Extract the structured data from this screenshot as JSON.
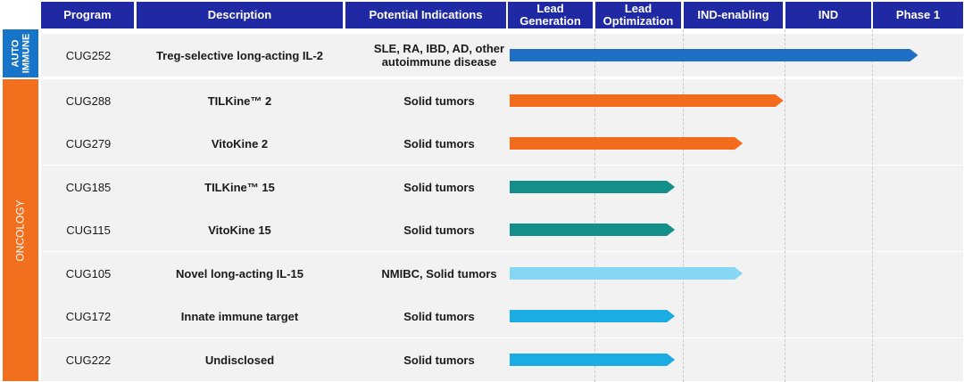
{
  "columns": {
    "program": "Program",
    "description": "Description",
    "indications": "Potential Indications",
    "stages": [
      "Lead\nGeneration",
      "Lead\nOptimization",
      "IND-enabling",
      "IND",
      "Phase 1"
    ]
  },
  "categories": {
    "autoimmune": "AUTO\nIMMUNE",
    "oncology": "ONCOLOGY"
  },
  "rows": [
    {
      "program": "CUG252",
      "description": "Treg-selective long-acting IL-2",
      "indication": "SLE, RA, IBD, AD, other\nautoimmune disease",
      "progress_stage": 4.5,
      "color": "#1F6FC4"
    },
    {
      "program": "CUG288",
      "description": "TILKine™ 2",
      "indication": "Solid tumors",
      "progress_stage": 2.98,
      "color": "#F36B1C"
    },
    {
      "program": "CUG279",
      "description": "VitoKine 2",
      "indication": "Solid tumors",
      "progress_stage": 2.58,
      "color": "#F36B1C"
    },
    {
      "program": "CUG185",
      "description": "TILKine™ 15",
      "indication": "Solid tumors",
      "progress_stage": 1.9,
      "color": "#148F8A"
    },
    {
      "program": "CUG115",
      "description": "VitoKine 15",
      "indication": "Solid tumors",
      "progress_stage": 1.9,
      "color": "#148F8A"
    },
    {
      "program": "CUG105",
      "description": "Novel long-acting IL-15",
      "indication": "NMIBC, Solid tumors",
      "progress_stage": 2.58,
      "color": "#87D6F4"
    },
    {
      "program": "CUG172",
      "description": "Innate immune target",
      "indication": "Solid tumors",
      "progress_stage": 1.9,
      "color": "#1AACE3"
    },
    {
      "program": "CUG222",
      "description": "Undisclosed",
      "indication": "Solid tumors",
      "progress_stage": 1.9,
      "color": "#1AACE3"
    }
  ]
}
